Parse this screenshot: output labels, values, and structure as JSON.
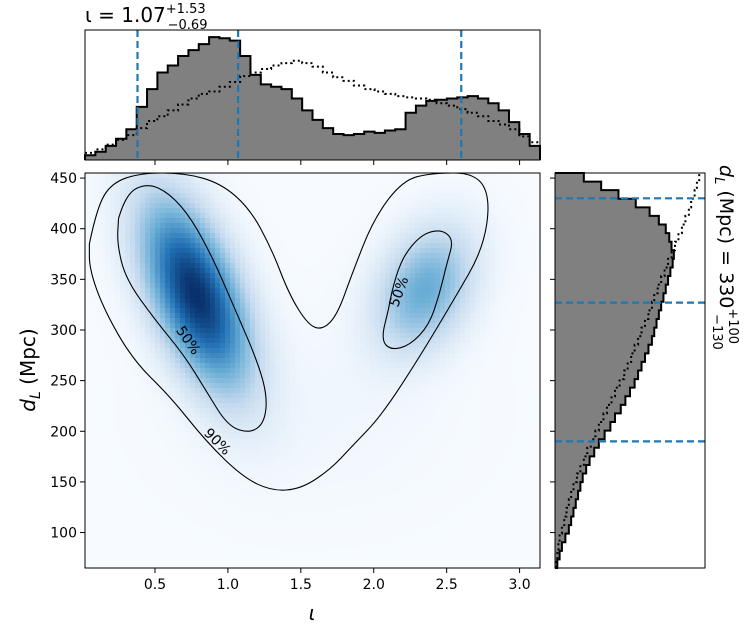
{
  "chart_data": [
    {
      "type": "heatmap",
      "xlabel": "ι",
      "ylabel": "d_L (Mpc)",
      "xlim": [
        0.02,
        3.14
      ],
      "ylim": [
        65,
        455
      ],
      "xticks": [
        0.5,
        1.0,
        1.5,
        2.0,
        2.5,
        3.0
      ],
      "xtick_labels": [
        "0.5",
        "1.0",
        "1.5",
        "2.0",
        "2.5",
        "3.0"
      ],
      "yticks": [
        100,
        150,
        200,
        250,
        300,
        350,
        400,
        450
      ],
      "ytick_labels": [
        "100",
        "150",
        "200",
        "250",
        "300",
        "350",
        "400",
        "450"
      ],
      "colormap": "Blues",
      "density_modes": [
        {
          "x": 0.78,
          "y": 335,
          "sx": 0.24,
          "sy": 60,
          "rho": -0.55,
          "w": 1.0
        },
        {
          "x": 2.35,
          "y": 340,
          "sx": 0.22,
          "sy": 40,
          "rho": 0.3,
          "w": 0.45
        }
      ],
      "contours": [
        {
          "label": "90%",
          "label_at": [
            0.93,
            190
          ],
          "points": [
            [
              0.05,
              385
            ],
            [
              0.1,
              420
            ],
            [
              0.2,
              445
            ],
            [
              0.4,
              455
            ],
            [
              0.7,
              455
            ],
            [
              0.95,
              445
            ],
            [
              1.15,
              420
            ],
            [
              1.3,
              380
            ],
            [
              1.42,
              335
            ],
            [
              1.55,
              305
            ],
            [
              1.65,
              300
            ],
            [
              1.75,
              315
            ],
            [
              1.85,
              355
            ],
            [
              2.0,
              410
            ],
            [
              2.2,
              448
            ],
            [
              2.4,
              455
            ],
            [
              2.7,
              455
            ],
            [
              2.8,
              430
            ],
            [
              2.75,
              380
            ],
            [
              2.55,
              330
            ],
            [
              2.3,
              270
            ],
            [
              2.05,
              215
            ],
            [
              1.85,
              185
            ],
            [
              1.7,
              162
            ],
            [
              1.5,
              143
            ],
            [
              1.3,
              141
            ],
            [
              1.1,
              155
            ],
            [
              0.85,
              190
            ],
            [
              0.6,
              235
            ],
            [
              0.35,
              270
            ],
            [
              0.15,
              320
            ],
            [
              0.05,
              360
            ],
            [
              0.05,
              385
            ]
          ]
        },
        {
          "label": "50%",
          "label_at": [
            0.73,
            290
          ],
          "points": [
            [
              0.25,
              410
            ],
            [
              0.3,
              435
            ],
            [
              0.45,
              445
            ],
            [
              0.6,
              435
            ],
            [
              0.75,
              410
            ],
            [
              0.9,
              370
            ],
            [
              1.05,
              320
            ],
            [
              1.2,
              270
            ],
            [
              1.27,
              235
            ],
            [
              1.25,
              208
            ],
            [
              1.15,
              198
            ],
            [
              1.0,
              205
            ],
            [
              0.85,
              240
            ],
            [
              0.7,
              275
            ],
            [
              0.5,
              310
            ],
            [
              0.3,
              350
            ],
            [
              0.24,
              385
            ],
            [
              0.25,
              410
            ]
          ]
        },
        {
          "label": "50%",
          "label_at": [
            2.17,
            338
          ],
          "points": [
            [
              2.1,
              320
            ],
            [
              2.15,
              360
            ],
            [
              2.3,
              392
            ],
            [
              2.45,
              400
            ],
            [
              2.55,
              390
            ],
            [
              2.5,
              365
            ],
            [
              2.45,
              335
            ],
            [
              2.38,
              305
            ],
            [
              2.25,
              285
            ],
            [
              2.12,
              280
            ],
            [
              2.05,
              290
            ],
            [
              2.1,
              320
            ]
          ]
        }
      ]
    },
    {
      "type": "bar",
      "orientation": "vertical",
      "title": "ι = 1.07",
      "title_sup": "+1.53",
      "title_sub": "−0.69",
      "xlim": [
        0.02,
        3.14
      ],
      "bin_edges": [
        0.02,
        3.14
      ],
      "nbins": 44,
      "values": [
        4,
        7,
        12,
        18,
        26,
        45,
        60,
        74,
        80,
        88,
        93,
        98,
        104,
        103,
        101,
        88,
        72,
        64,
        62,
        60,
        52,
        42,
        34,
        27,
        22,
        21,
        22,
        24,
        23,
        25,
        26,
        40,
        46,
        50,
        51,
        52,
        53,
        54,
        52,
        48,
        42,
        32,
        22,
        12
      ],
      "prior_values": [
        6,
        9,
        13,
        17,
        21,
        27,
        33,
        37,
        42,
        47,
        52,
        56,
        58,
        62,
        66,
        71,
        74,
        77,
        80,
        82,
        84,
        82,
        79,
        74,
        70,
        67,
        63,
        60,
        58,
        56,
        54,
        53,
        52,
        51,
        48,
        46,
        43,
        40,
        37,
        33,
        30,
        26,
        20,
        15
      ],
      "quantile_lines": [
        0.38,
        1.07,
        2.6
      ],
      "ymax": 110
    },
    {
      "type": "bar",
      "orientation": "horizontal",
      "title": "d_L (Mpc) = 330",
      "title_sup": "+100",
      "title_sub": "−130",
      "ylim": [
        65,
        455
      ],
      "nbins": 46,
      "values": [
        2,
        4,
        6,
        9,
        12,
        14,
        16,
        18,
        20,
        22,
        24,
        27,
        30,
        34,
        38,
        43,
        48,
        52,
        57,
        61,
        65,
        69,
        72,
        75,
        78,
        81,
        84,
        86,
        88,
        90,
        92,
        94,
        96,
        98,
        100,
        102,
        103,
        101,
        99,
        96,
        90,
        82,
        70,
        55,
        40,
        25
      ],
      "prior_values": [
        1,
        2,
        3,
        4,
        6,
        8,
        10,
        12,
        14,
        16,
        19,
        22,
        25,
        28,
        31,
        35,
        38,
        42,
        45,
        49,
        52,
        56,
        60,
        63,
        66,
        69,
        72,
        75,
        78,
        81,
        84,
        86,
        89,
        92,
        95,
        98,
        101,
        104,
        107,
        110,
        113,
        116,
        118,
        121,
        123,
        125
      ],
      "quantile_lines": [
        190,
        327,
        430
      ],
      "xmax": 130
    }
  ],
  "colors": {
    "dash": "#1f77b4",
    "hist_fill": "#808080",
    "hist_edge": "#000000"
  }
}
